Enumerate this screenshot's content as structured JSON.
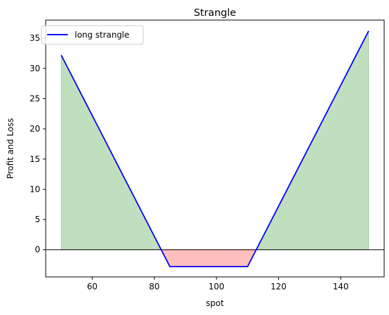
{
  "chart_data": {
    "type": "line",
    "title": "Strangle",
    "xlabel": "spot",
    "ylabel": "Profit and Loss",
    "xlim": [
      45,
      154
    ],
    "ylim": [
      -4.5,
      38
    ],
    "xticks": [
      60,
      80,
      100,
      120,
      140
    ],
    "yticks": [
      0,
      5,
      10,
      15,
      20,
      25,
      30,
      35
    ],
    "grid": false,
    "legend_position": "upper-left",
    "zero_line": {
      "y": 0,
      "color": "#000000"
    },
    "series": [
      {
        "name": "long strangle",
        "color": "#0000ff",
        "x": [
          50,
          85,
          110,
          149
        ],
        "y": [
          32.2,
          -2.8,
          -2.8,
          36.2
        ]
      }
    ],
    "fill": {
      "positive_color": "#008000",
      "positive_opacity": 0.25,
      "negative_color": "#ff0000",
      "negative_opacity": 0.25
    }
  }
}
